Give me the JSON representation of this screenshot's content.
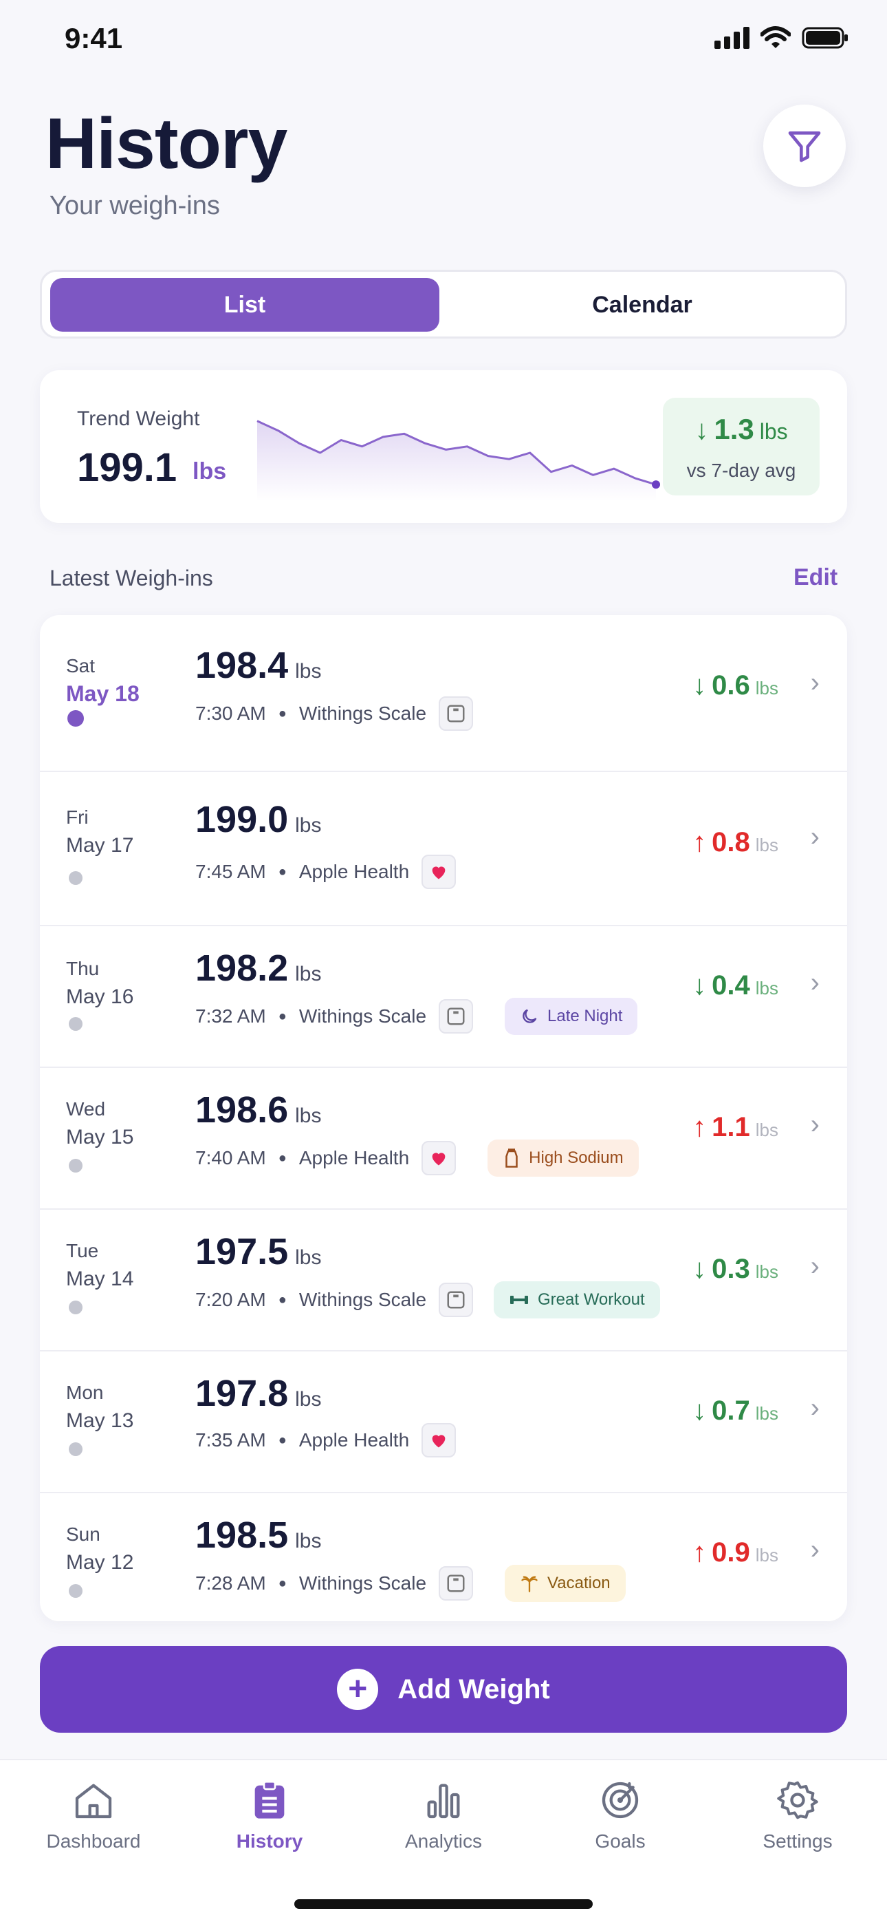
{
  "status_bar": {
    "time": "9:41"
  },
  "header": {
    "title": "History",
    "subtitle": "Your weigh-ins"
  },
  "view_toggle": {
    "active": "List",
    "inactive": "Calendar"
  },
  "trend": {
    "label": "Trend Weight",
    "value": "199.1",
    "unit": "lbs",
    "delta_arrow": "↓",
    "delta_value": "1.3",
    "delta_unit": "lbs",
    "delta_sub": "vs 7-day avg",
    "sparkline_values": [
      200.6,
      200.3,
      199.9,
      199.6,
      200.0,
      199.8,
      200.1,
      200.2,
      199.9,
      199.7,
      199.8,
      199.5,
      199.4,
      199.6,
      199.0,
      199.2,
      198.9,
      199.1,
      198.8,
      198.6
    ]
  },
  "section": {
    "title": "Latest Weigh-ins",
    "edit_label": "Edit"
  },
  "entries": [
    {
      "day": "Sat",
      "date": "May 18",
      "weight": "198.4",
      "unit": "lbs",
      "time": "7:30 AM",
      "source": "Withings Scale",
      "source_icon": "scale-icon",
      "tag": "",
      "direction": "down",
      "arrow": "↓",
      "change": "0.6",
      "change_unit": "lbs",
      "active": true
    },
    {
      "day": "Fri",
      "date": "May 17",
      "weight": "199.0",
      "unit": "lbs",
      "time": "7:45 AM",
      "source": "Apple Health",
      "source_icon": "heart-icon",
      "tag": "",
      "direction": "up",
      "arrow": "↑",
      "change": "0.8",
      "change_unit": "lbs",
      "active": false
    },
    {
      "day": "Thu",
      "date": "May 16",
      "weight": "198.2",
      "unit": "lbs",
      "time": "7:32 AM",
      "source": "Withings Scale",
      "source_icon": "scale-icon",
      "tag": "Late Night",
      "tag_icon": "moon-icon",
      "tag_style": "purple",
      "direction": "down",
      "arrow": "↓",
      "change": "0.4",
      "change_unit": "lbs",
      "active": false
    },
    {
      "day": "Wed",
      "date": "May 15",
      "weight": "198.6",
      "unit": "lbs",
      "time": "7:40 AM",
      "source": "Apple Health",
      "source_icon": "heart-icon",
      "tag": "High Sodium",
      "tag_icon": "salt-shaker-icon",
      "tag_style": "orange",
      "direction": "up",
      "arrow": "↑",
      "change": "1.1",
      "change_unit": "lbs",
      "active": false
    },
    {
      "day": "Tue",
      "date": "May 14",
      "weight": "197.5",
      "unit": "lbs",
      "time": "7:20 AM",
      "source": "Withings Scale",
      "source_icon": "scale-icon",
      "tag": "Great Workout",
      "tag_icon": "dumbbell-icon",
      "tag_style": "teal",
      "direction": "down",
      "arrow": "↓",
      "change": "0.3",
      "change_unit": "lbs",
      "active": false
    },
    {
      "day": "Mon",
      "date": "May 13",
      "weight": "197.8",
      "unit": "lbs",
      "time": "7:35 AM",
      "source": "Apple Health",
      "source_icon": "heart-icon",
      "tag": "",
      "direction": "down",
      "arrow": "↓",
      "change": "0.7",
      "change_unit": "lbs",
      "active": false
    },
    {
      "day": "Sun",
      "date": "May 12",
      "weight": "198.5",
      "unit": "lbs",
      "time": "7:28 AM",
      "source": "Withings Scale",
      "source_icon": "scale-icon",
      "tag": "Vacation",
      "tag_icon": "palm-tree-icon",
      "tag_style": "yellow",
      "direction": "up",
      "arrow": "↑",
      "change": "0.9",
      "change_unit": "lbs",
      "active": false
    }
  ],
  "add_button": {
    "label": "Add Weight"
  },
  "tabs": [
    {
      "label": "Dashboard",
      "icon": "home-icon",
      "active": false
    },
    {
      "label": "History",
      "icon": "clipboard-icon",
      "active": true
    },
    {
      "label": "Analytics",
      "icon": "bar-chart-icon",
      "active": false
    },
    {
      "label": "Goals",
      "icon": "target-icon",
      "active": false
    },
    {
      "label": "Settings",
      "icon": "gear-icon",
      "active": false
    }
  ],
  "colors": {
    "accent": "#7d57c3",
    "button": "#6b3fc2",
    "down": "#2f8a47",
    "up": "#e12a2a"
  }
}
